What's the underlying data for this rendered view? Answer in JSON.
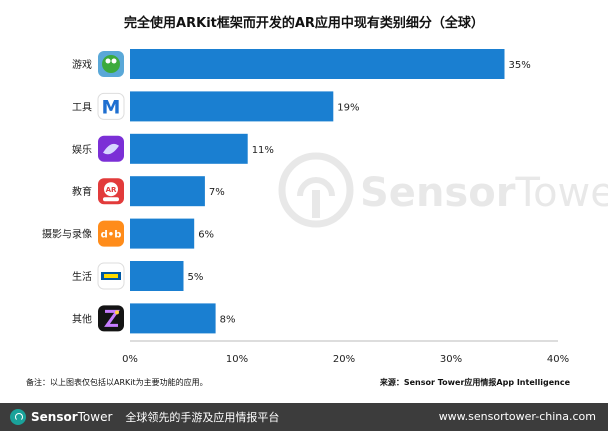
{
  "title": "完全使用ARKit框架而开发的AR应用中现有类别细分（全球）",
  "note": "备注：以上图表仅包括以ARKit为主要功能的应用。",
  "source": "来源：Sensor Tower应用情报App Intelligence",
  "watermark": {
    "sensor": "Sensor",
    "tower": "Tower"
  },
  "footer": {
    "brand_sensor": "Sensor",
    "brand_tower": "Tower",
    "tagline": "全球领先的手游及应用情报平台",
    "url": "www.sensortower-china.com"
  },
  "colors": {
    "bar": "#1a7fd1",
    "footer": "#3c3c3c",
    "accent": "#1aa29a"
  },
  "chart_data": {
    "type": "bar",
    "orientation": "horizontal",
    "title": "完全使用ARKit框架而开发的AR应用中现有类别细分（全球）",
    "categories": [
      "游戏",
      "工具",
      "娱乐",
      "教育",
      "摄影与录像",
      "生活",
      "其他"
    ],
    "values": [
      35,
      19,
      11,
      7,
      6,
      5,
      8
    ],
    "value_labels": [
      "35%",
      "19%",
      "11%",
      "7%",
      "6%",
      "5%",
      "8%"
    ],
    "xlim": [
      0,
      40
    ],
    "xticks": [
      0,
      10,
      20,
      30,
      40
    ],
    "xtick_labels": [
      "0%",
      "10%",
      "20%",
      "30%",
      "40%"
    ],
    "unit": "%",
    "grid": false,
    "icons": [
      "game-app-icon",
      "tool-app-icon",
      "entertainment-app-icon",
      "education-app-icon",
      "photo-video-app-icon",
      "lifestyle-app-icon",
      "other-app-icon"
    ]
  }
}
